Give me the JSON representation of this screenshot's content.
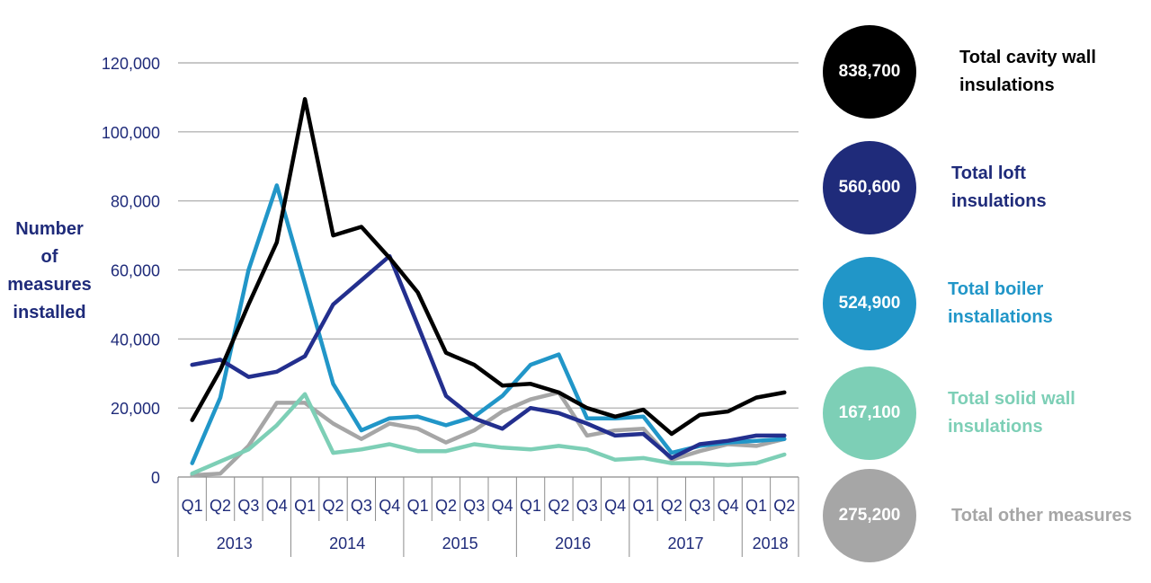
{
  "chart_data": {
    "type": "line",
    "ylabel_lines": [
      "Number",
      "of",
      "measures",
      "installed"
    ],
    "ylim": [
      0,
      120000
    ],
    "yticks": [
      0,
      20000,
      40000,
      60000,
      80000,
      100000,
      120000
    ],
    "ytick_labels": [
      "0",
      "20,000",
      "40,000",
      "60,000",
      "80,000",
      "100,000",
      "120,000"
    ],
    "quarters": [
      "Q1",
      "Q2",
      "Q3",
      "Q4",
      "Q1",
      "Q2",
      "Q3",
      "Q4",
      "Q1",
      "Q2",
      "Q3",
      "Q4",
      "Q1",
      "Q2",
      "Q3",
      "Q4",
      "Q1",
      "Q2",
      "Q3",
      "Q4",
      "Q1",
      "Q2"
    ],
    "years": [
      {
        "label": "2013",
        "quarters": 4
      },
      {
        "label": "2014",
        "quarters": 4
      },
      {
        "label": "2015",
        "quarters": 4
      },
      {
        "label": "2016",
        "quarters": 4
      },
      {
        "label": "2017",
        "quarters": 4
      },
      {
        "label": "2018",
        "quarters": 2
      }
    ],
    "series": [
      {
        "name": "Total other measures",
        "color": "#a6a6a6",
        "values": [
          500,
          1000,
          9000,
          21500,
          21500,
          15500,
          11000,
          15500,
          14000,
          10000,
          13500,
          19000,
          22500,
          24500,
          12000,
          13500,
          14000,
          5000,
          7500,
          9500,
          9000,
          11000
        ]
      },
      {
        "name": "Total solid wall insulations",
        "color": "#7dcfb6",
        "values": [
          1000,
          4500,
          8000,
          15000,
          24000,
          7000,
          8000,
          9500,
          7500,
          7500,
          9500,
          8500,
          8000,
          9000,
          8000,
          5000,
          5500,
          4000,
          4000,
          3500,
          4000,
          6500
        ]
      },
      {
        "name": "Total boiler installations",
        "color": "#2196c8",
        "values": [
          4000,
          23000,
          60000,
          84500,
          56000,
          27000,
          13500,
          17000,
          17500,
          15000,
          17500,
          23500,
          32500,
          35500,
          17000,
          17000,
          17500,
          7000,
          9000,
          10000,
          10500,
          11000
        ]
      },
      {
        "name": "Total loft insulations",
        "color": "#232f8e",
        "values": [
          32500,
          34000,
          29000,
          30500,
          35000,
          50000,
          57000,
          64000,
          44000,
          23500,
          17000,
          14000,
          20000,
          18500,
          15500,
          12000,
          12500,
          5500,
          9500,
          10500,
          12000,
          12000
        ]
      },
      {
        "name": "Total cavity wall insulations",
        "color": "#000000",
        "values": [
          16500,
          31000,
          50000,
          68000,
          109500,
          70000,
          72500,
          63500,
          53500,
          36000,
          32500,
          26500,
          27000,
          24500,
          20000,
          17500,
          19500,
          12500,
          18000,
          19000,
          23000,
          24500
        ]
      }
    ]
  },
  "legend": [
    {
      "total": "838,700",
      "label_lines": [
        "Total cavity wall",
        "insulations"
      ],
      "bubble_color": "#000000",
      "text_color": "#000000"
    },
    {
      "total": "560,600",
      "label_lines": [
        "Total loft",
        "insulations"
      ],
      "bubble_color": "#1f2b7a",
      "text_color": "#1f2b7a"
    },
    {
      "total": "524,900",
      "label_lines": [
        "Total boiler",
        "installations"
      ],
      "bubble_color": "#2196c8",
      "text_color": "#2196c8"
    },
    {
      "total": "167,100",
      "label_lines": [
        "Total solid wall",
        "insulations"
      ],
      "bubble_color": "#7dcfb6",
      "text_color": "#7dcfb6"
    },
    {
      "total": "275,200",
      "label_lines": [
        "Total other measures"
      ],
      "bubble_color": "#a6a6a6",
      "text_color": "#a6a6a6"
    }
  ]
}
